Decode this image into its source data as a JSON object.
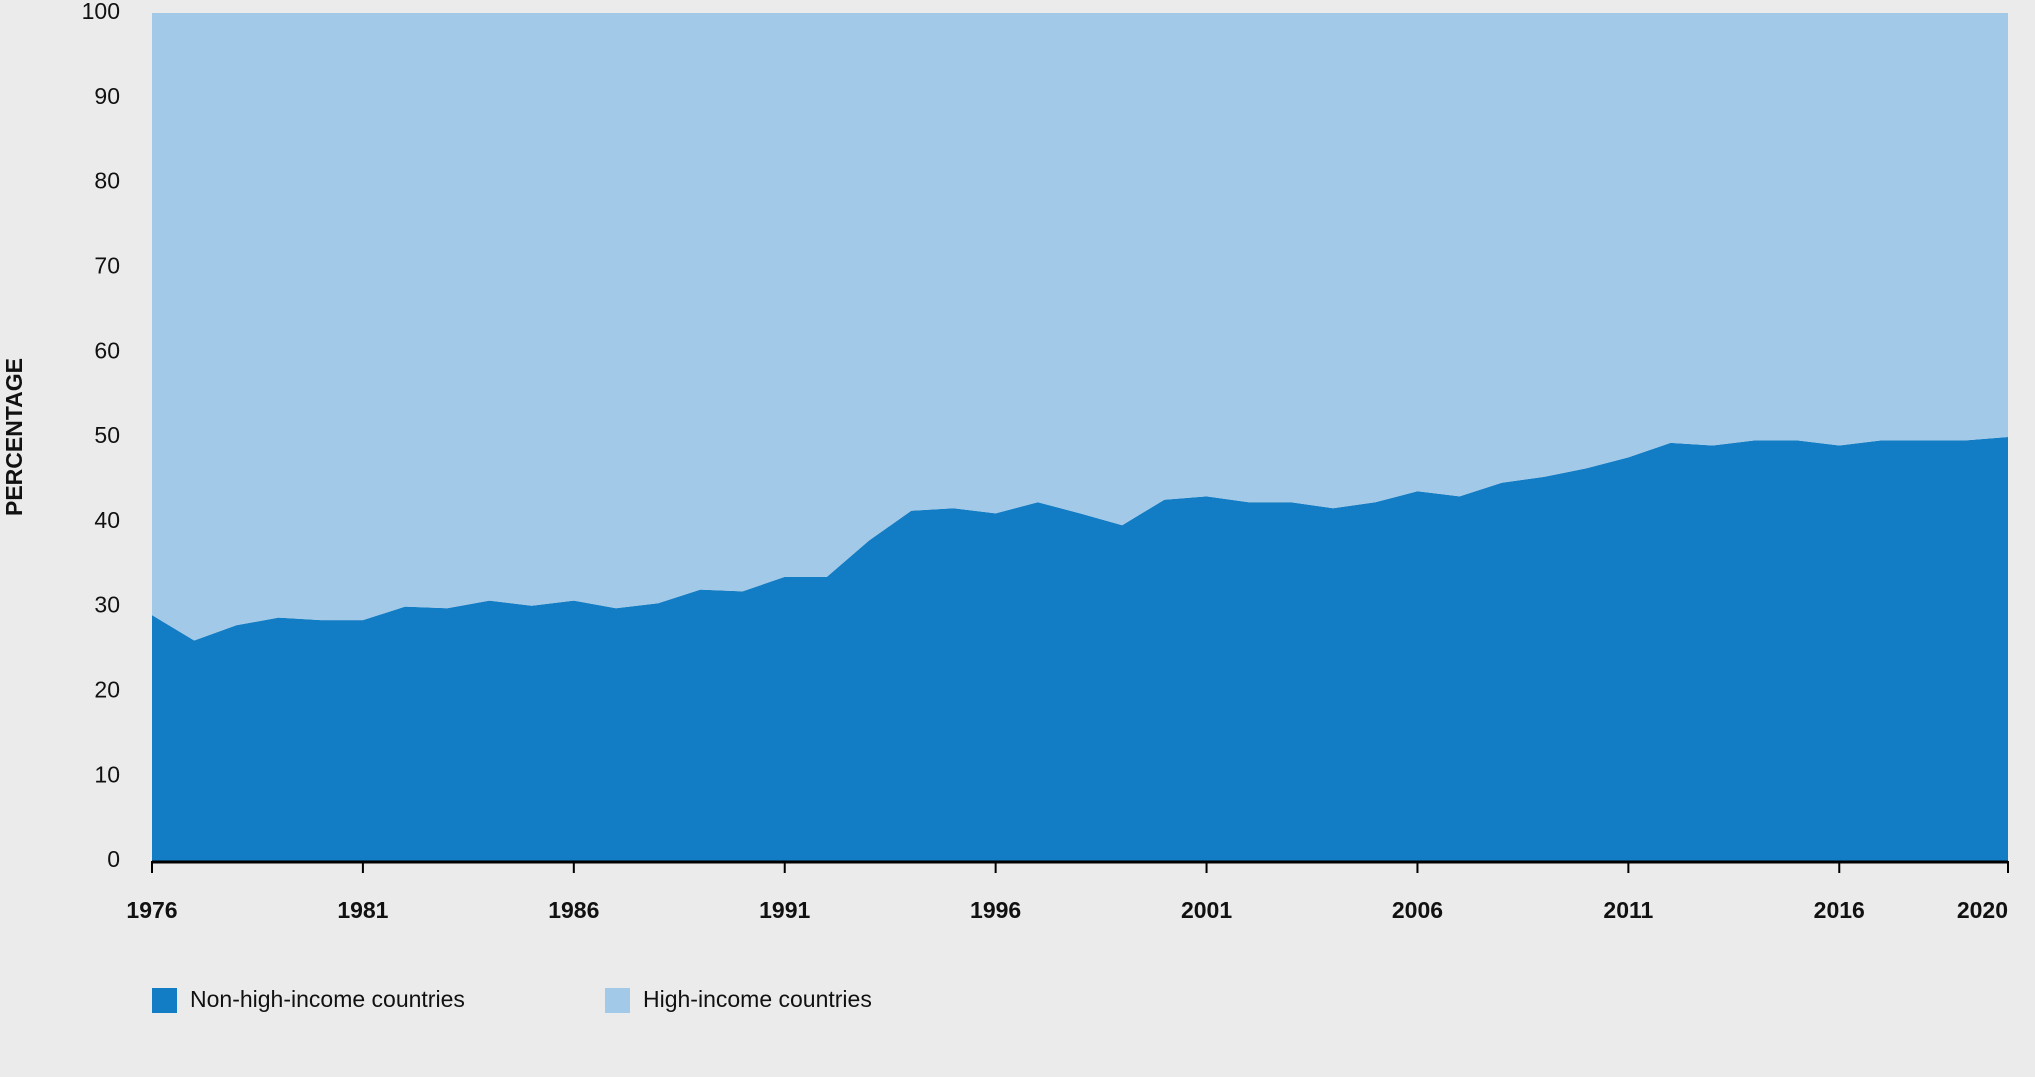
{
  "chart_data": {
    "type": "stacked_area",
    "y_label": "PERCENTAGE",
    "x": [
      1976,
      1977,
      1978,
      1979,
      1980,
      1981,
      1982,
      1983,
      1984,
      1985,
      1986,
      1987,
      1988,
      1989,
      1990,
      1991,
      1992,
      1993,
      1994,
      1995,
      1996,
      1997,
      1998,
      1999,
      2000,
      2001,
      2002,
      2003,
      2004,
      2005,
      2006,
      2007,
      2008,
      2009,
      2010,
      2011,
      2012,
      2013,
      2014,
      2015,
      2016,
      2017,
      2018,
      2019,
      2020
    ],
    "series": [
      {
        "name": "Non-high-income countries",
        "color": "#127dc4",
        "values": [
          29,
          26,
          27.8,
          28.7,
          28.4,
          28.4,
          30,
          29.8,
          30.7,
          30.1,
          30.7,
          29.8,
          30.4,
          32,
          31.8,
          33.5,
          33.5,
          37.8,
          41.3,
          41.6,
          41,
          42.3,
          41,
          39.6,
          42.6,
          43,
          42.3,
          42.3,
          41.6,
          42.3,
          43.6,
          43,
          44.6,
          45.3,
          46.3,
          47.6,
          49.3,
          49,
          49.6,
          49.6,
          49,
          49.6,
          49.6,
          49.6,
          50
        ]
      },
      {
        "name": "High-income countries",
        "color": "#a3c9e9",
        "values": [
          71,
          74,
          72.2,
          71.3,
          71.6,
          71.6,
          70,
          70.2,
          69.3,
          69.9,
          69.3,
          70.2,
          69.6,
          68,
          68.2,
          66.5,
          66.5,
          62.2,
          58.7,
          58.4,
          59,
          57.7,
          59,
          60.4,
          57.4,
          57,
          57.7,
          57.7,
          58.4,
          57.7,
          56.4,
          57,
          55.4,
          54.7,
          53.7,
          52.4,
          50.7,
          51,
          50.4,
          50.4,
          51,
          50.4,
          50.4,
          50.4,
          50
        ]
      }
    ],
    "xlim": [
      1976,
      2020
    ],
    "xticks": [
      1976,
      1981,
      1986,
      1991,
      1996,
      2001,
      2006,
      2011,
      2016,
      2020
    ],
    "ylim": [
      0,
      100
    ],
    "yticks": [
      0,
      10,
      20,
      30,
      40,
      50,
      60,
      70,
      80,
      90,
      100
    ]
  }
}
